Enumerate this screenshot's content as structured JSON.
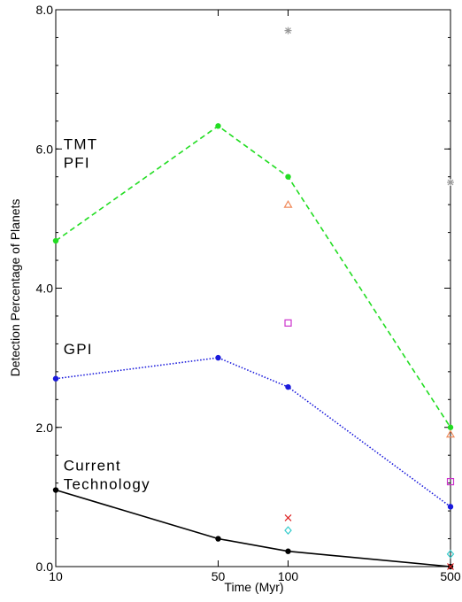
{
  "chart_data": {
    "type": "line",
    "xlabel": "Time (Myr)",
    "ylabel": "Detection Percentage of Planets",
    "x_scale": "log",
    "xlim": [
      10,
      500
    ],
    "ylim": [
      0,
      8
    ],
    "x_ticks": [
      {
        "value": 10,
        "label": "10"
      },
      {
        "value": 50,
        "label": "50"
      },
      {
        "value": 100,
        "label": "100"
      },
      {
        "value": 500,
        "label": "500"
      }
    ],
    "y_ticks": [
      {
        "value": 0,
        "label": "0.0"
      },
      {
        "value": 2,
        "label": "2.0"
      },
      {
        "value": 4,
        "label": "4.0"
      },
      {
        "value": 6,
        "label": "6.0"
      },
      {
        "value": 8,
        "label": "8.0"
      }
    ],
    "grid": false,
    "series": [
      {
        "key": "tmt",
        "color": "#22dd22",
        "dash": "6,4",
        "marker": "circle",
        "points": [
          [
            10,
            4.68
          ],
          [
            50,
            6.33
          ],
          [
            100,
            5.6
          ],
          [
            500,
            2.0
          ]
        ]
      },
      {
        "key": "gpi",
        "color": "#1a1adc",
        "dash": "1.5,2",
        "marker": "circle",
        "points": [
          [
            10,
            2.7
          ],
          [
            50,
            3.0
          ],
          [
            100,
            2.58
          ],
          [
            500,
            0.86
          ]
        ]
      },
      {
        "key": "current",
        "color": "#000000",
        "dash": "",
        "marker": "circle",
        "points": [
          [
            10,
            1.1
          ],
          [
            50,
            0.4
          ],
          [
            100,
            0.22
          ],
          [
            500,
            0.0
          ]
        ]
      }
    ],
    "extra_points": [
      {
        "x": 100,
        "y": 7.7,
        "marker": "asterisk",
        "color": "#999999"
      },
      {
        "x": 500,
        "y": 5.52,
        "marker": "asterisk",
        "color": "#999999"
      },
      {
        "x": 100,
        "y": 5.2,
        "marker": "triangle",
        "color": "#f08a5a"
      },
      {
        "x": 500,
        "y": 1.9,
        "marker": "triangle",
        "color": "#f08a5a"
      },
      {
        "x": 100,
        "y": 3.5,
        "marker": "square",
        "color": "#cc33cc"
      },
      {
        "x": 500,
        "y": 1.22,
        "marker": "square",
        "color": "#cc33cc"
      },
      {
        "x": 100,
        "y": 0.7,
        "marker": "cross",
        "color": "#dd2222"
      },
      {
        "x": 500,
        "y": 0.0,
        "marker": "cross",
        "color": "#dd2222"
      },
      {
        "x": 100,
        "y": 0.52,
        "marker": "diamond",
        "color": "#33cccc"
      },
      {
        "x": 500,
        "y": 0.18,
        "marker": "diamond",
        "color": "#33cccc"
      }
    ],
    "annotations": [
      {
        "key": "tmt",
        "lines": [
          "TMT",
          "PFI"
        ],
        "x": 10.8,
        "y": 6.0
      },
      {
        "key": "gpi",
        "lines": [
          "GPI"
        ],
        "x": 10.8,
        "y": 3.05
      },
      {
        "key": "current",
        "lines": [
          "Current",
          "Technology"
        ],
        "x": 10.8,
        "y": 1.38
      }
    ]
  }
}
